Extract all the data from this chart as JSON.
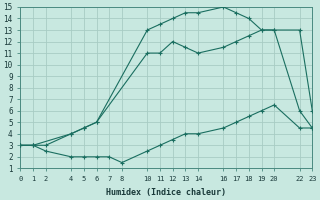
{
  "xlabel": "Humidex (Indice chaleur)",
  "bg_color": "#c8e8e0",
  "grid_color": "#a8ccc4",
  "line_color": "#1a6e60",
  "xlim": [
    0,
    23
  ],
  "ylim": [
    1,
    15
  ],
  "xticks": [
    0,
    1,
    2,
    4,
    5,
    6,
    7,
    8,
    10,
    11,
    12,
    13,
    14,
    16,
    17,
    18,
    19,
    20,
    22,
    23
  ],
  "yticks": [
    1,
    2,
    3,
    4,
    5,
    6,
    7,
    8,
    9,
    10,
    11,
    12,
    13,
    14,
    15
  ],
  "line1_x": [
    0,
    1,
    2,
    4,
    5,
    6,
    10,
    11,
    12,
    13,
    14,
    16,
    17,
    18,
    19,
    20,
    22,
    23
  ],
  "line1_y": [
    3,
    3,
    3,
    4,
    4.5,
    5,
    11,
    11,
    12,
    11.5,
    11,
    11.5,
    12,
    12.5,
    13,
    13,
    13,
    6
  ],
  "line2_x": [
    0,
    1,
    4,
    5,
    6,
    10,
    11,
    12,
    13,
    14,
    16,
    17,
    18,
    19,
    20,
    22,
    23
  ],
  "line2_y": [
    3,
    3,
    4,
    4.5,
    5,
    13,
    13.5,
    14,
    14.5,
    14.5,
    15,
    14.5,
    14,
    13,
    13,
    6,
    4.5
  ],
  "line3_x": [
    0,
    1,
    2,
    4,
    5,
    6,
    7,
    8,
    10,
    11,
    12,
    13,
    14,
    16,
    17,
    18,
    19,
    20,
    22,
    23
  ],
  "line3_y": [
    3,
    3,
    2.5,
    2,
    2,
    2,
    2,
    1.5,
    2.5,
    3,
    3.5,
    4,
    4,
    4.5,
    5,
    5.5,
    6,
    6.5,
    4.5,
    4.5
  ]
}
